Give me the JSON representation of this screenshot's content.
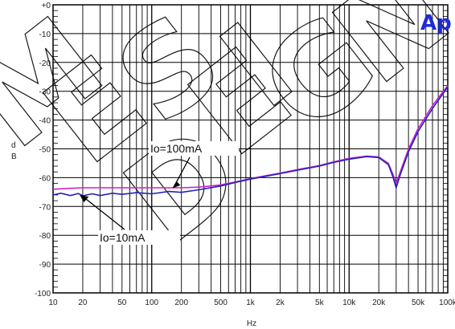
{
  "chart_data": {
    "type": "line",
    "title": "",
    "xlabel": "Hz",
    "ylabel": "dB",
    "ylabel_chars": [
      "d",
      "B"
    ],
    "xscale": "log",
    "xlim": [
      10,
      100000
    ],
    "ylim": [
      -100,
      0
    ],
    "grid": true,
    "x_tick_values": [
      10,
      20,
      50,
      100,
      200,
      500,
      1000,
      2000,
      5000,
      10000,
      20000,
      50000,
      100000
    ],
    "x_tick_labels": [
      "10",
      "20",
      "50",
      "100",
      "200",
      "500",
      "1k",
      "2k",
      "5k",
      "10k",
      "20k",
      "50k",
      "100k"
    ],
    "y_tick_values": [
      0,
      -10,
      -20,
      -30,
      -40,
      -50,
      -60,
      -70,
      -80,
      -90,
      -100
    ],
    "y_tick_labels": [
      "+0",
      "-10",
      "-20",
      "-30",
      "-40",
      "-50",
      "-60",
      "-70",
      "-80",
      "-90",
      "-100"
    ],
    "series": [
      {
        "name": "Io=100mA",
        "color": "#cc22cc",
        "x": [
          10,
          15,
          20,
          30,
          50,
          70,
          100,
          150,
          200,
          300,
          500,
          700,
          1000,
          1500,
          2000,
          3000,
          5000,
          7000,
          10000,
          15000,
          20000,
          25000,
          28000,
          30000,
          33000,
          40000,
          50000,
          70000,
          100000
        ],
        "y": [
          -64,
          -63.7,
          -63.5,
          -63.5,
          -63.5,
          -63.5,
          -63.5,
          -63.5,
          -63.5,
          -63.3,
          -62.5,
          -61.5,
          -60.3,
          -59.2,
          -58.4,
          -57.2,
          -55.8,
          -54.5,
          -53.3,
          -52.5,
          -52.8,
          -55,
          -59,
          -62,
          -58,
          -50,
          -43,
          -35,
          -28
        ]
      },
      {
        "name": "Io=10mA",
        "color": "#2222bb",
        "x": [
          10,
          12,
          15,
          18,
          20,
          25,
          30,
          40,
          50,
          70,
          100,
          150,
          200,
          300,
          500,
          700,
          1000,
          1500,
          2000,
          3000,
          5000,
          7000,
          10000,
          15000,
          20000,
          25000,
          28000,
          30000,
          33000,
          40000,
          50000,
          70000,
          100000
        ],
        "y": [
          -66,
          -65.4,
          -66.2,
          -65.5,
          -66.3,
          -65.6,
          -66.2,
          -65.4,
          -65.8,
          -65.2,
          -65.6,
          -64.8,
          -65.1,
          -64.2,
          -62.9,
          -61.7,
          -60.5,
          -59.4,
          -58.6,
          -57.4,
          -56,
          -54.7,
          -53.6,
          -52.7,
          -53,
          -55.5,
          -60,
          -63.5,
          -59,
          -51,
          -44,
          -36,
          -28.5
        ]
      }
    ],
    "annotations": [
      {
        "text": "Io=100mA",
        "x": 150,
        "y": -64
      },
      {
        "text": "Io=10mA",
        "x": 18,
        "y": -65.5
      }
    ],
    "logo": "Ap",
    "watermark": "MEDESIGN"
  }
}
